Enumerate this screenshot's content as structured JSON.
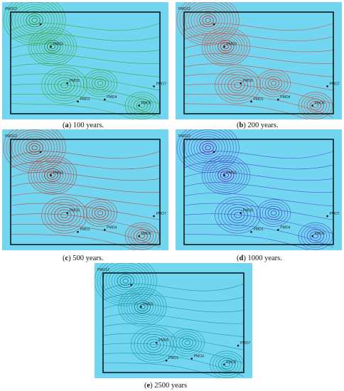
{
  "background": "#73d6f0",
  "panels": [
    {
      "id": "a",
      "letter": "a",
      "caption": " 100 years.",
      "line_color": "#3aa845",
      "hot_color": "#2b8a2b",
      "wells": [
        "PMO12",
        "PMO3",
        "PMO5",
        "PMO1",
        "PMO4",
        "PMO7",
        "PMO6"
      ]
    },
    {
      "id": "b",
      "letter": "b",
      "caption": " 200 years.",
      "line_color": "#c4584a",
      "hot_color": "#c0392b",
      "wells": [
        "PMO12",
        "PMO3",
        "PMO5",
        "PMO1",
        "PMO4",
        "PMO7",
        "PMO6"
      ]
    },
    {
      "id": "c",
      "letter": "c",
      "caption": " 500 years.",
      "line_color": "#b0504a",
      "hot_color": "#b03020",
      "wells": [
        "PMO12",
        "PMO3",
        "PMO5",
        "PMO1",
        "PMO4",
        "PMO7",
        "PMO6"
      ]
    },
    {
      "id": "d",
      "letter": "d",
      "caption": " 1000 years.",
      "line_color": "#4a55d0",
      "hot_color": "#6a1fc0",
      "wells": [
        "PMO12",
        "PMO3",
        "PMO5",
        "PMO1",
        "PMO4",
        "PMO7",
        "PMO6"
      ]
    },
    {
      "id": "e",
      "letter": "e",
      "caption": " 2500 years",
      "line_color": "#1a9aa8",
      "hot_color": "#0d7f8c",
      "wells": [
        "PMO12",
        "PMO3",
        "PMO5",
        "PMO1",
        "PMO4",
        "PMO7",
        "PMO6"
      ]
    }
  ]
}
